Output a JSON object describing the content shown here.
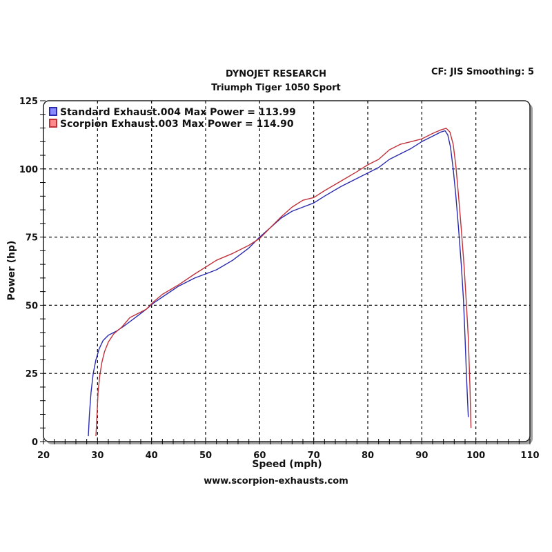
{
  "header": {
    "title": "DYNOJET RESEARCH",
    "subtitle": "Triumph Tiger 1050 Sport",
    "settings": "CF: JIS  Smoothing: 5"
  },
  "footer": {
    "url": "www.scorpion-exhausts.com"
  },
  "colors": {
    "standard": "#2a2ab0",
    "scorpion": "#c0303a",
    "grid": "#000000",
    "frame_shadow": "#a0a0a0"
  },
  "chart_data": {
    "type": "line",
    "title": "DYNOJET RESEARCH",
    "subtitle": "Triumph Tiger 1050 Sport",
    "xlabel": "Speed (mph)",
    "ylabel": "Power (hp)",
    "xlim": [
      20,
      110
    ],
    "ylim": [
      0,
      125
    ],
    "xticks": [
      20,
      30,
      40,
      50,
      60,
      70,
      80,
      90,
      100,
      110
    ],
    "yticks": [
      0,
      25,
      50,
      75,
      100,
      125
    ],
    "grid": true,
    "legend_position": "top-left",
    "legend": [
      "Standard Exhaust.004 Max Power = 113.99",
      "Scorpion Exhaust.003 Max Power = 114.90"
    ],
    "series": [
      {
        "name": "Standard Exhaust.004",
        "max_power": 113.99,
        "color": "#2a2ab0",
        "x": [
          28.3,
          28.5,
          28.8,
          29.2,
          29.7,
          30.3,
          31.0,
          32.0,
          33.5,
          35.0,
          37.0,
          39.0,
          40.5,
          42.0,
          45.0,
          48.0,
          50.0,
          52.0,
          55.0,
          58.0,
          60.0,
          62.0,
          64.0,
          66.0,
          68.0,
          70.0,
          72.0,
          75.0,
          78.0,
          80.0,
          82.0,
          84.0,
          86.0,
          88.0,
          90.0,
          92.0,
          93.5,
          94.3,
          94.8,
          95.3,
          95.8,
          96.3,
          96.8,
          97.3,
          97.7,
          98.0,
          98.3,
          98.6
        ],
        "y": [
          2,
          10,
          18,
          25,
          30,
          34,
          37,
          39,
          40.5,
          42.5,
          45.5,
          48.5,
          51,
          53,
          57,
          60,
          61.5,
          63,
          66.5,
          71,
          75,
          78.5,
          82,
          84.5,
          86,
          87.5,
          90,
          93.5,
          96.5,
          98.5,
          100.5,
          103.5,
          105.5,
          107.5,
          110,
          112,
          113.5,
          113.99,
          112.5,
          108,
          100,
          90,
          78,
          65,
          52,
          38,
          22,
          9
        ]
      },
      {
        "name": "Scorpion Exhaust.003",
        "max_power": 114.9,
        "color": "#c0303a",
        "x": [
          29.7,
          29.9,
          30.1,
          30.4,
          30.8,
          31.3,
          32.0,
          33.0,
          34.5,
          36.0,
          37.5,
          39.0,
          40.5,
          42.0,
          45.0,
          48.0,
          50.0,
          52.0,
          55.0,
          58.0,
          60.0,
          62.0,
          64.0,
          66.0,
          68.0,
          70.0,
          72.0,
          75.0,
          78.0,
          80.0,
          82.0,
          84.0,
          86.0,
          88.0,
          90.0,
          92.0,
          93.5,
          94.5,
          95.2,
          95.8,
          96.3,
          96.8,
          97.3,
          97.8,
          98.2,
          98.6,
          98.9,
          99.1
        ],
        "y": [
          2,
          10,
          18,
          24,
          29,
          33,
          36.5,
          39.5,
          42,
          45.5,
          47,
          48.5,
          51.5,
          54,
          57.5,
          61.5,
          64,
          66.5,
          69,
          72,
          74.5,
          78.5,
          82.5,
          86,
          88.5,
          89.5,
          92,
          95.5,
          99,
          101.5,
          103.5,
          107,
          109,
          110,
          111,
          113,
          114.3,
          114.9,
          113.5,
          109,
          101,
          90,
          78,
          65,
          52,
          38,
          20,
          5
        ]
      }
    ]
  }
}
